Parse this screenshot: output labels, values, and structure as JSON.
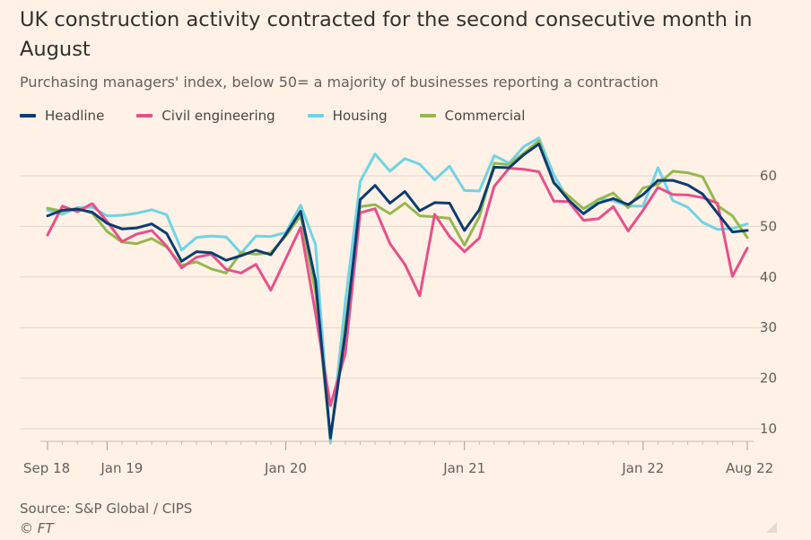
{
  "title": "UK construction activity contracted for the second consecutive month in August",
  "subtitle": "Purchasing managers' index, below 50= a majority of businesses reporting a contraction",
  "source": "Source: S&P Global / CIPS",
  "copyright": "© FT",
  "legend": [
    {
      "label": "Headline",
      "color": "#0d3b73"
    },
    {
      "label": "Civil engineering",
      "color": "#e8508a"
    },
    {
      "label": "Housing",
      "color": "#6fd4e4"
    },
    {
      "label": "Commercial",
      "color": "#96b84e"
    }
  ],
  "chart_data": {
    "type": "line",
    "title": "UK construction activity contracted for the second consecutive month in August",
    "xlabel": "",
    "ylabel": "",
    "ylim": [
      7,
      70
    ],
    "yticks": [
      10,
      20,
      30,
      40,
      50,
      60
    ],
    "xticks": [
      {
        "label": "Sep 18",
        "month_index": 0
      },
      {
        "label": "Jan 19",
        "month_index": 4
      },
      {
        "label": "Jan 20",
        "month_index": 16
      },
      {
        "label": "Jan 21",
        "month_index": 28
      },
      {
        "label": "Jan 22",
        "month_index": 40
      },
      {
        "label": "Aug 22",
        "month_index": 47
      }
    ],
    "x_start": "Sep 2018",
    "x_end": "Aug 2022",
    "series": [
      {
        "name": "Headline",
        "color": "#0d3b73",
        "values": [
          52.1,
          53.2,
          53.4,
          52.8,
          50.6,
          49.5,
          49.7,
          50.5,
          48.6,
          43.1,
          45.0,
          44.8,
          43.3,
          44.2,
          45.3,
          44.4,
          48.4,
          53.0,
          39.3,
          8.2,
          28.9,
          55.3,
          58.1,
          54.6,
          56.9,
          53.1,
          54.7,
          54.6,
          49.2,
          53.3,
          61.7,
          61.6,
          64.2,
          66.3,
          58.7,
          55.2,
          52.5,
          54.6,
          55.5,
          54.3,
          56.3,
          59.1,
          59.1,
          58.2,
          56.4,
          52.6,
          48.9,
          49.2
        ]
      },
      {
        "name": "Civil engineering",
        "color": "#e8508a",
        "values": [
          48.3,
          54.0,
          52.9,
          54.5,
          51.0,
          47.0,
          48.5,
          49.2,
          46.1,
          41.8,
          43.9,
          44.5,
          41.5,
          40.8,
          42.5,
          37.4,
          43.6,
          49.8,
          32.8,
          14.6,
          24.9,
          52.7,
          53.5,
          46.6,
          42.5,
          36.3,
          52.4,
          48.0,
          45.0,
          47.7,
          57.9,
          61.5,
          61.3,
          60.8,
          55.0,
          54.9,
          51.2,
          51.5,
          53.9,
          49.1,
          53.2,
          57.7,
          56.3,
          56.2,
          55.7,
          54.6,
          40.1,
          45.7
        ]
      },
      {
        "name": "Housing",
        "color": "#6fd4e4",
        "values": [
          53.2,
          52.4,
          53.7,
          53.8,
          52.1,
          52.2,
          52.6,
          53.3,
          52.3,
          45.3,
          47.8,
          48.1,
          47.9,
          44.7,
          48.1,
          48.0,
          48.8,
          54.2,
          46.4,
          7.2,
          35.0,
          58.9,
          64.3,
          60.9,
          63.4,
          62.3,
          59.2,
          61.9,
          57.1,
          57.0,
          64.0,
          62.5,
          65.8,
          67.5,
          60.2,
          55.1,
          52.5,
          55.4,
          55.1,
          54.0,
          54.0,
          61.6,
          55.1,
          53.8,
          50.8,
          49.4,
          49.6,
          50.5
        ]
      },
      {
        "name": "Commercial",
        "color": "#96b84e",
        "values": [
          53.6,
          53.0,
          53.6,
          52.6,
          49.0,
          46.9,
          46.6,
          47.6,
          45.9,
          42.3,
          43.0,
          41.6,
          40.8,
          44.8,
          44.5,
          44.8,
          48.1,
          52.1,
          37.0,
          8.0,
          30.3,
          53.9,
          54.3,
          52.5,
          54.6,
          52.1,
          51.9,
          51.6,
          46.3,
          51.9,
          62.5,
          62.2,
          64.5,
          66.9,
          58.5,
          56.0,
          53.5,
          55.3,
          56.6,
          53.7,
          57.6,
          58.3,
          60.9,
          60.6,
          59.8,
          54.1,
          52.1,
          47.8
        ]
      }
    ]
  }
}
